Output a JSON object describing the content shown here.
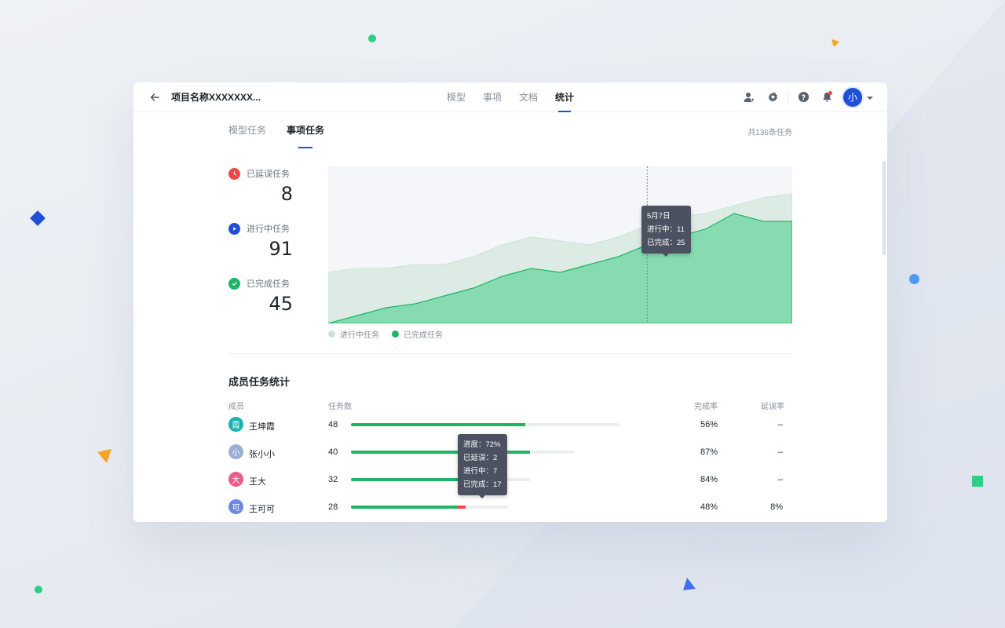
{
  "topbar": {
    "project_title": "项目名称XXXXXXX...",
    "tabs": [
      {
        "label": "模型"
      },
      {
        "label": "事项"
      },
      {
        "label": "文档"
      },
      {
        "label": "统计"
      }
    ],
    "active_tab": "统计",
    "avatar_text": "小"
  },
  "subtabs": [
    {
      "label": "模型任务"
    },
    {
      "label": "事项任务"
    }
  ],
  "total_text": "共136条任务",
  "stats": [
    {
      "label": "已延误任务",
      "value": "8",
      "color": "#f04848"
    },
    {
      "label": "进行中任务",
      "value": "91",
      "color": "#1f4fd8"
    },
    {
      "label": "已完成任务",
      "value": "45",
      "color": "#1fb466"
    }
  ],
  "chart_data": {
    "type": "area",
    "series": [
      {
        "name": "进行中任务",
        "color": "#c8e3d6",
        "values": [
          13,
          14,
          14,
          15,
          15,
          17,
          20,
          22,
          21,
          20,
          22,
          25,
          27,
          28,
          30,
          32,
          33
        ]
      },
      {
        "name": "已完成任务",
        "color": "#1fb466",
        "values": [
          0,
          2,
          4,
          5,
          7,
          9,
          12,
          14,
          13,
          15,
          17,
          20,
          22,
          24,
          28,
          26,
          26
        ]
      }
    ],
    "grid": false,
    "legend_position": "bottom-left"
  },
  "chart_tooltip": {
    "date": "5月7日",
    "line1": "进行中：11",
    "line2": "已完成：25"
  },
  "members_section": {
    "title": "成员任务统计",
    "headers": {
      "member": "成员",
      "tasks": "任务数",
      "rate": "完成率",
      "delay": "延误率"
    },
    "rows": [
      {
        "avatar": "霞",
        "avatar_color": "#17b3b3",
        "name": "王坤霞",
        "count": "48",
        "count_num": 48,
        "complete_frac": 0.65,
        "delay_frac": 0,
        "rate": "56%",
        "delay": "–"
      },
      {
        "avatar": "小",
        "avatar_color": "#9aaed6",
        "name": "张小小",
        "count": "40",
        "count_num": 40,
        "complete_frac": 0.8,
        "delay_frac": 0,
        "rate": "87%",
        "delay": "–"
      },
      {
        "avatar": "大",
        "avatar_color": "#ec5c8a",
        "name": "王大",
        "count": "32",
        "count_num": 32,
        "complete_frac": 0.78,
        "delay_frac": 0,
        "rate": "84%",
        "delay": "–"
      },
      {
        "avatar": "可",
        "avatar_color": "#6c8ae4",
        "name": "王可可",
        "count": "28",
        "count_num": 28,
        "complete_frac": 0.68,
        "delay_frac": 0.05,
        "rate": "48%",
        "delay": "8%"
      }
    ],
    "tooltip": {
      "line1": "进度：72%",
      "line2": "已延误：2",
      "line3": "进行中：7",
      "line4": "已完成：17"
    }
  },
  "icons": {
    "back": "arrow-left-icon",
    "user_add": "user-icon",
    "settings": "gear-icon",
    "help": "question-icon",
    "notifications": "bell-icon",
    "dropdown": "chevron-down-icon"
  }
}
